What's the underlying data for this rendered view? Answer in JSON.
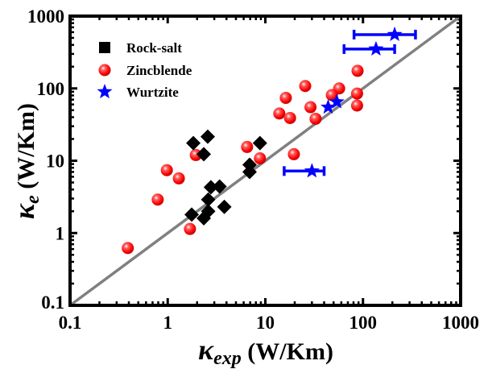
{
  "chart_data": {
    "type": "scatter",
    "xscale": "log",
    "yscale": "log",
    "xlim": [
      0.1,
      1000
    ],
    "ylim": [
      0.1,
      1000
    ],
    "xlabel": {
      "symbol": "κ",
      "sub": "exp",
      "unit": " (W/Km)"
    },
    "ylabel": {
      "symbol": "κ",
      "sub": "e",
      "unit": " (W/Km)"
    },
    "xticks": [
      "0.1",
      "1",
      "10",
      "100",
      "1000"
    ],
    "yticks": [
      "0.1",
      "1",
      "10",
      "100",
      "1000"
    ],
    "tick_values": [
      0.1,
      1,
      10,
      100,
      1000
    ],
    "reference_line": "y = x",
    "legend_position": "top-left",
    "colors": {
      "rock_salt": "#000000",
      "zincblende": "#ff0000",
      "wurtzite": "#0000ff",
      "line": "#808080"
    },
    "series": [
      {
        "name": "Rock-salt",
        "marker": "diamond",
        "points": [
          [
            1.83,
            17.5
          ],
          [
            2.57,
            21.5
          ],
          [
            2.34,
            12.3
          ],
          [
            8.8,
            17.5
          ],
          [
            6.9,
            8.8
          ],
          [
            6.9,
            7.0
          ],
          [
            2.77,
            4.3
          ],
          [
            3.4,
            4.4
          ],
          [
            2.6,
            2.9
          ],
          [
            3.8,
            2.3
          ],
          [
            1.76,
            1.8
          ],
          [
            2.34,
            1.6
          ],
          [
            2.6,
            2.0
          ]
        ]
      },
      {
        "name": "Zincblende",
        "marker": "sphere",
        "points": [
          [
            1.94,
            12
          ],
          [
            0.98,
            7.4
          ],
          [
            1.3,
            5.7
          ],
          [
            0.79,
            2.9
          ],
          [
            1.69,
            1.14
          ],
          [
            0.39,
            0.62
          ],
          [
            6.5,
            15.5
          ],
          [
            8.8,
            10.8
          ],
          [
            88,
            175
          ],
          [
            25.6,
            108
          ],
          [
            57,
            100
          ],
          [
            16.2,
            74
          ],
          [
            48,
            81
          ],
          [
            87,
            85
          ],
          [
            29,
            55
          ],
          [
            87,
            58
          ],
          [
            13.9,
            45
          ],
          [
            17.9,
            39
          ],
          [
            32.7,
            38
          ],
          [
            19.6,
            12.3
          ]
        ]
      },
      {
        "name": "Wurtzite",
        "marker": "star",
        "points": [
          {
            "x": 211,
            "y": 555,
            "xerr": [
              81,
              345
            ]
          },
          {
            "x": 136,
            "y": 350,
            "xerr": [
              64,
              211
            ]
          },
          {
            "x": 54,
            "y": 65
          },
          {
            "x": 44,
            "y": 55
          },
          {
            "x": 30,
            "y": 7.2,
            "xerr": [
              15.6,
              40
            ]
          }
        ]
      }
    ]
  }
}
